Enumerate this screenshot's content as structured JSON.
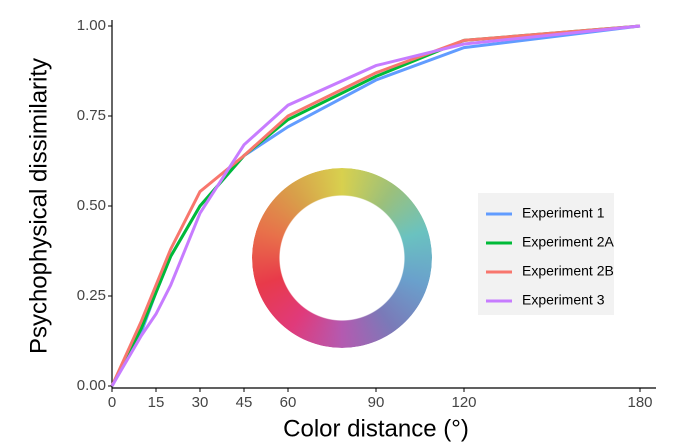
{
  "chart_data": {
    "type": "line",
    "x_label": "Color distance (°)",
    "y_label": "Psychophysical dissimilarity",
    "x": [
      0,
      10,
      15,
      20,
      30,
      45,
      60,
      90,
      120,
      180
    ],
    "series": [
      {
        "name": "Experiment 1",
        "color": "#619cff",
        "values": [
          0,
          0.15,
          0.26,
          0.36,
          0.5,
          0.64,
          0.72,
          0.85,
          0.94,
          1.0
        ]
      },
      {
        "name": "Experiment 2A",
        "color": "#00ba38",
        "values": [
          0,
          0.16,
          0.26,
          0.36,
          0.5,
          0.64,
          0.74,
          0.86,
          0.96,
          1.0
        ]
      },
      {
        "name": "Experiment 2B",
        "color": "#f8766d",
        "values": [
          0,
          0.18,
          0.28,
          0.38,
          0.54,
          0.64,
          0.75,
          0.87,
          0.96,
          1.0
        ]
      },
      {
        "name": "Experiment 3",
        "color": "#c77cff",
        "values": [
          0,
          0.14,
          0.2,
          0.28,
          0.48,
          0.67,
          0.78,
          0.89,
          0.95,
          1.0
        ]
      }
    ],
    "xlim": [
      0,
      180
    ],
    "xticks": [
      0,
      15,
      30,
      45,
      60,
      90,
      120,
      180
    ],
    "ylim": [
      0,
      1
    ],
    "yticks": [
      {
        "value": 0,
        "label": "0.00"
      },
      {
        "value": 0.25,
        "label": "0.25"
      },
      {
        "value": 0.5,
        "label": "0.50"
      },
      {
        "value": 0.75,
        "label": "0.75"
      },
      {
        "value": 1,
        "label": "1.00"
      }
    ]
  }
}
